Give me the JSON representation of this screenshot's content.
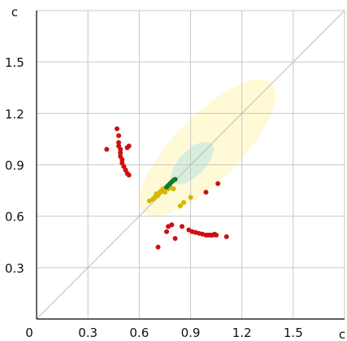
{
  "chart_data": {
    "type": "scatter",
    "title": "",
    "xlabel": "c",
    "ylabel": "c",
    "xlim": [
      0,
      1.8
    ],
    "ylim": [
      0,
      1.8
    ],
    "xticks": [
      0,
      0.3,
      0.6,
      0.9,
      1.2,
      1.5
    ],
    "yticks": [
      0.3,
      0.6,
      0.9,
      1.2,
      1.5
    ],
    "xtick_labels": [
      "0",
      "0.3",
      "0.6",
      "0.9",
      "1.2",
      "1.5"
    ],
    "ytick_labels": [
      "0.3",
      "0.6",
      "0.9",
      "1.2",
      "1.5"
    ],
    "grid": true,
    "diagonal": {
      "from": [
        0,
        0
      ],
      "to": [
        1.8,
        1.8
      ],
      "color": "#bdbdbd"
    },
    "ellipses": [
      {
        "cx": 1.0,
        "cy": 1.0,
        "rx": 0.53,
        "ry": 0.19,
        "angle": 45,
        "color": "#fff9d6"
      },
      {
        "cx": 0.91,
        "cy": 0.91,
        "rx": 0.16,
        "ry": 0.075,
        "angle": 45,
        "color": "#d8eedd"
      }
    ],
    "series": [
      {
        "color": "#cc1111",
        "points": [
          [
            0.41,
            0.99
          ],
          [
            0.47,
            1.11
          ],
          [
            0.48,
            1.07
          ],
          [
            0.48,
            1.03
          ],
          [
            0.48,
            1.01
          ],
          [
            0.49,
            0.99
          ],
          [
            0.49,
            0.97
          ],
          [
            0.49,
            0.95
          ],
          [
            0.5,
            0.93
          ],
          [
            0.5,
            0.91
          ],
          [
            0.51,
            0.89
          ],
          [
            0.52,
            0.87
          ],
          [
            0.53,
            0.85
          ],
          [
            0.54,
            0.84
          ],
          [
            0.53,
            1.0
          ],
          [
            0.54,
            1.01
          ],
          [
            0.71,
            0.42
          ],
          [
            0.76,
            0.51
          ],
          [
            0.77,
            0.54
          ],
          [
            0.79,
            0.55
          ],
          [
            0.81,
            0.47
          ],
          [
            0.85,
            0.54
          ],
          [
            0.89,
            0.52
          ],
          [
            0.91,
            0.51
          ],
          [
            0.93,
            0.505
          ],
          [
            0.95,
            0.5
          ],
          [
            0.97,
            0.495
          ],
          [
            0.99,
            0.49
          ],
          [
            1.0,
            0.49
          ],
          [
            1.01,
            0.49
          ],
          [
            1.02,
            0.49
          ],
          [
            1.03,
            0.49
          ],
          [
            1.04,
            0.495
          ],
          [
            1.05,
            0.49
          ],
          [
            1.11,
            0.48
          ],
          [
            0.99,
            0.74
          ],
          [
            1.06,
            0.79
          ]
        ]
      },
      {
        "color": "#d4b800",
        "points": [
          [
            0.66,
            0.69
          ],
          [
            0.68,
            0.7
          ],
          [
            0.69,
            0.71
          ],
          [
            0.7,
            0.73
          ],
          [
            0.71,
            0.72
          ],
          [
            0.72,
            0.74
          ],
          [
            0.73,
            0.75
          ],
          [
            0.74,
            0.76
          ],
          [
            0.75,
            0.74
          ],
          [
            0.77,
            0.76
          ],
          [
            0.78,
            0.77
          ],
          [
            0.8,
            0.76
          ],
          [
            0.84,
            0.66
          ],
          [
            0.86,
            0.68
          ],
          [
            0.9,
            0.71
          ]
        ]
      },
      {
        "color": "#0f7a2a",
        "points": [
          [
            0.76,
            0.77
          ],
          [
            0.77,
            0.78
          ],
          [
            0.78,
            0.79
          ],
          [
            0.79,
            0.8
          ],
          [
            0.8,
            0.81
          ],
          [
            0.81,
            0.815
          ]
        ]
      }
    ]
  }
}
